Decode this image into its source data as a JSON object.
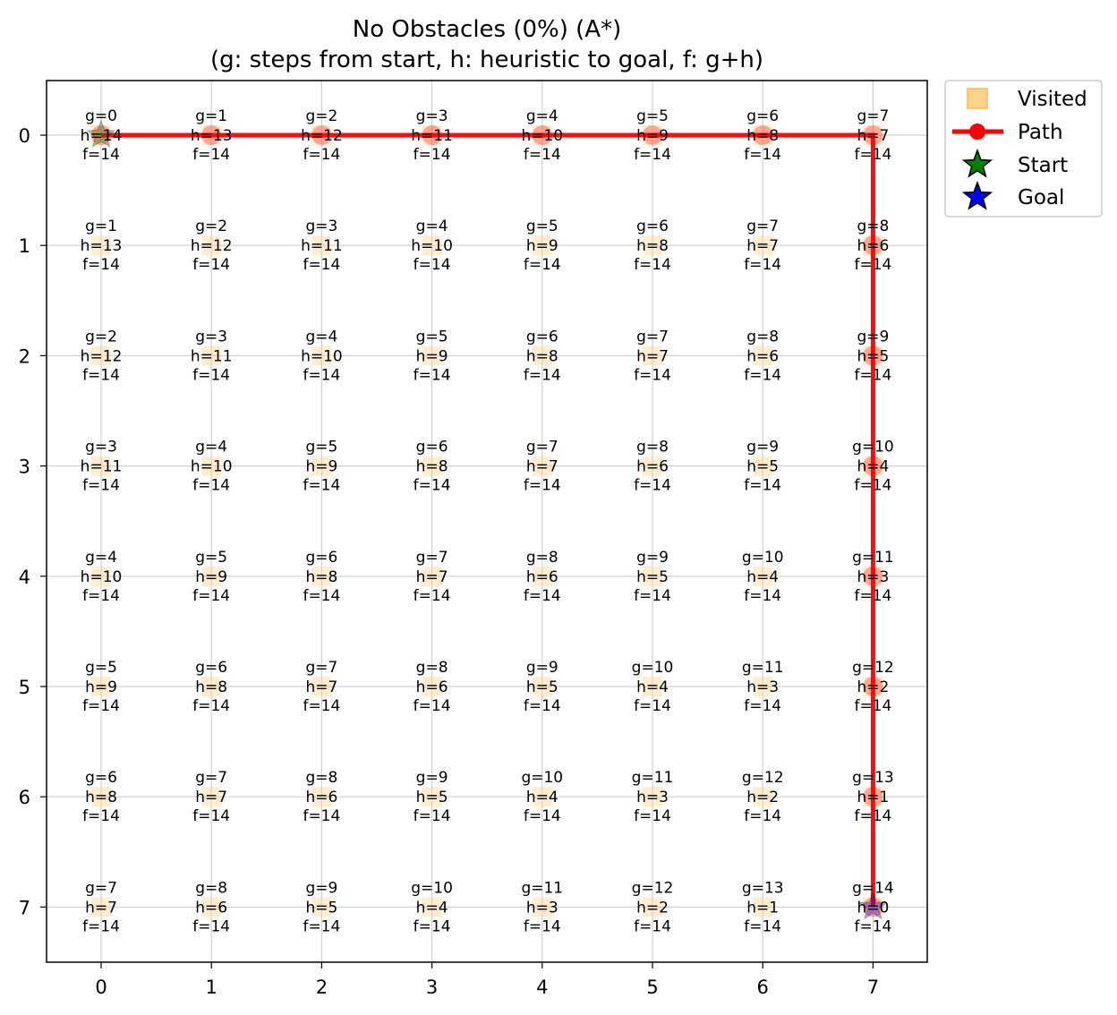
{
  "chart_data": {
    "type": "grid",
    "title": "No Obstacles (0%) (A*)",
    "subtitle": "(g: steps from start, h: heuristic to goal, f: g+h)",
    "xlabel": "",
    "ylabel": "",
    "grid_size": 8,
    "xlim": [
      -0.5,
      7.5
    ],
    "ylim": [
      7.5,
      -0.5
    ],
    "x_ticks": [
      "0",
      "1",
      "2",
      "3",
      "4",
      "5",
      "6",
      "7"
    ],
    "y_ticks": [
      "0",
      "1",
      "2",
      "3",
      "4",
      "5",
      "6",
      "7"
    ],
    "grid": true,
    "start": [
      0,
      0
    ],
    "goal": [
      7,
      7
    ],
    "path": [
      [
        0,
        0
      ],
      [
        0,
        1
      ],
      [
        0,
        2
      ],
      [
        0,
        3
      ],
      [
        0,
        4
      ],
      [
        0,
        5
      ],
      [
        0,
        6
      ],
      [
        0,
        7
      ],
      [
        1,
        7
      ],
      [
        2,
        7
      ],
      [
        3,
        7
      ],
      [
        4,
        7
      ],
      [
        5,
        7
      ],
      [
        6,
        7
      ],
      [
        7,
        7
      ]
    ],
    "g_values": [
      [
        0,
        1,
        2,
        3,
        4,
        5,
        6,
        7
      ],
      [
        1,
        2,
        3,
        4,
        5,
        6,
        7,
        8
      ],
      [
        2,
        3,
        4,
        5,
        6,
        7,
        8,
        9
      ],
      [
        3,
        4,
        5,
        6,
        7,
        8,
        9,
        10
      ],
      [
        4,
        5,
        6,
        7,
        8,
        9,
        10,
        11
      ],
      [
        5,
        6,
        7,
        8,
        9,
        10,
        11,
        12
      ],
      [
        6,
        7,
        8,
        9,
        10,
        11,
        12,
        13
      ],
      [
        7,
        8,
        9,
        10,
        11,
        12,
        13,
        14
      ]
    ],
    "h_values": [
      [
        14,
        13,
        12,
        11,
        10,
        9,
        8,
        7
      ],
      [
        13,
        12,
        11,
        10,
        9,
        8,
        7,
        6
      ],
      [
        12,
        11,
        10,
        9,
        8,
        7,
        6,
        5
      ],
      [
        11,
        10,
        9,
        8,
        7,
        6,
        5,
        4
      ],
      [
        10,
        9,
        8,
        7,
        6,
        5,
        4,
        3
      ],
      [
        9,
        8,
        7,
        6,
        5,
        4,
        3,
        2
      ],
      [
        8,
        7,
        6,
        5,
        4,
        3,
        2,
        1
      ],
      [
        7,
        6,
        5,
        4,
        3,
        2,
        1,
        0
      ]
    ],
    "f_values": [
      [
        14,
        14,
        14,
        14,
        14,
        14,
        14,
        14
      ],
      [
        14,
        14,
        14,
        14,
        14,
        14,
        14,
        14
      ],
      [
        14,
        14,
        14,
        14,
        14,
        14,
        14,
        14
      ],
      [
        14,
        14,
        14,
        14,
        14,
        14,
        14,
        14
      ],
      [
        14,
        14,
        14,
        14,
        14,
        14,
        14,
        14
      ],
      [
        14,
        14,
        14,
        14,
        14,
        14,
        14,
        14
      ],
      [
        14,
        14,
        14,
        14,
        14,
        14,
        14,
        14
      ],
      [
        14,
        14,
        14,
        14,
        14,
        14,
        14,
        14
      ]
    ],
    "legend": {
      "placement": "outside-top-right",
      "entries": [
        "Visited",
        "Path",
        "Start",
        "Goal"
      ]
    },
    "colors": {
      "visited": "#ffd38a",
      "path": "#ff0000",
      "start": "#008000",
      "goal": "#0000ff",
      "grid": "#d0d0d0"
    }
  }
}
